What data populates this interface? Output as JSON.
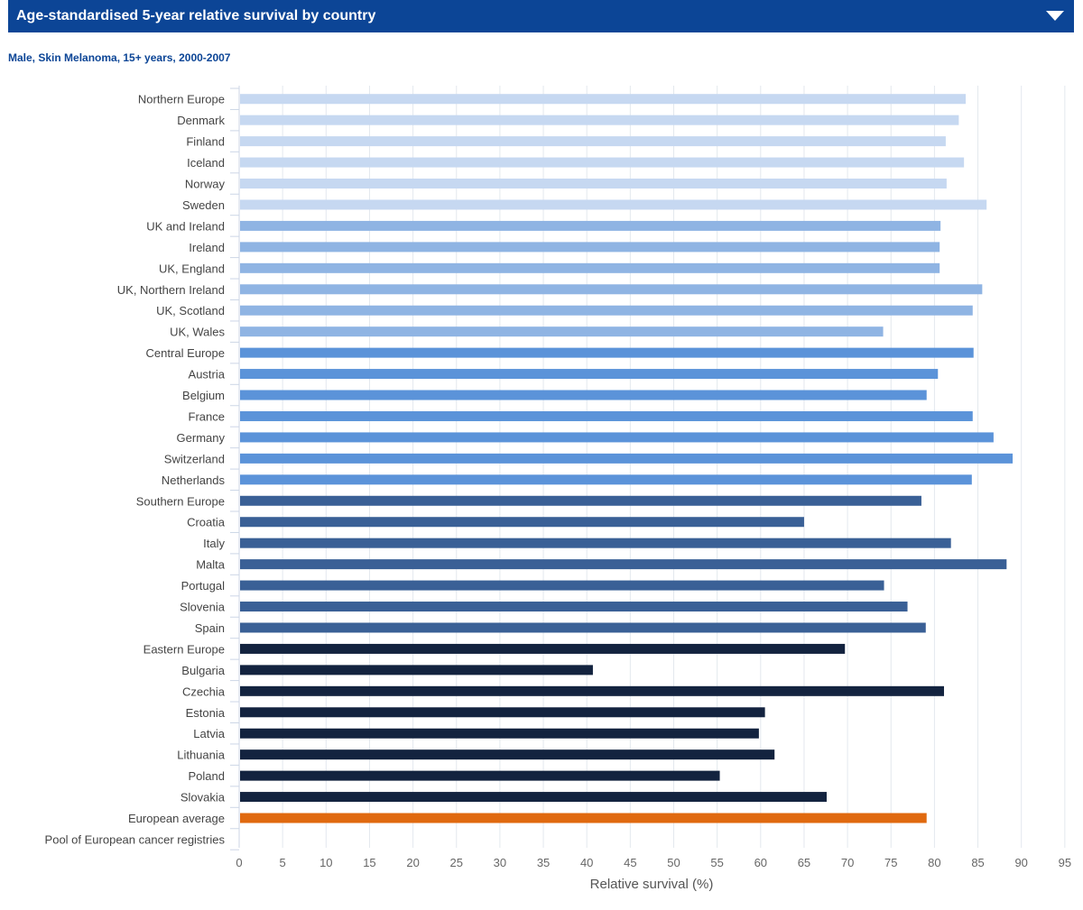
{
  "header": {
    "title": "Age-standardised 5-year relative survival by country"
  },
  "subtitle": "Male, Skin Melanoma, 15+ years, 2000-2007",
  "colors": {
    "northern_europe": "#c6d8f1",
    "uk_and_ireland": "#8fb4e3",
    "central_europe": "#5b93d9",
    "southern_europe": "#3a6096",
    "eastern_europe": "#13233f",
    "european_average": "#e0690f"
  },
  "chart_data": {
    "type": "bar",
    "orientation": "horizontal",
    "xlabel": "Relative survival (%)",
    "xlim": [
      0,
      95
    ],
    "xticks": [
      0,
      5,
      10,
      15,
      20,
      25,
      30,
      35,
      40,
      45,
      50,
      55,
      60,
      65,
      70,
      75,
      80,
      85,
      90,
      95
    ],
    "grid": "vertical",
    "categories": [
      "Northern Europe",
      "Denmark",
      "Finland",
      "Iceland",
      "Norway",
      "Sweden",
      "UK and Ireland",
      "Ireland",
      "UK, England",
      "UK, Northern Ireland",
      "UK, Scotland",
      "UK, Wales",
      "Central Europe",
      "Austria",
      "Belgium",
      "France",
      "Germany",
      "Switzerland",
      "Netherlands",
      "Southern Europe",
      "Croatia",
      "Italy",
      "Malta",
      "Portugal",
      "Slovenia",
      "Spain",
      "Eastern Europe",
      "Bulgaria",
      "Czechia",
      "Estonia",
      "Latvia",
      "Lithuania",
      "Poland",
      "Slovakia",
      "European average",
      "Pool of European cancer registries"
    ],
    "values": [
      83.6,
      82.8,
      81.3,
      83.4,
      81.4,
      86.0,
      80.7,
      80.6,
      80.6,
      85.5,
      84.4,
      74.1,
      84.5,
      80.4,
      79.1,
      84.4,
      86.8,
      89.0,
      84.3,
      78.5,
      65.0,
      81.9,
      88.3,
      74.2,
      76.9,
      79.0,
      69.7,
      40.7,
      81.1,
      60.5,
      59.8,
      61.6,
      55.3,
      67.6,
      79.1,
      null
    ],
    "groups": [
      "northern_europe",
      "northern_europe",
      "northern_europe",
      "northern_europe",
      "northern_europe",
      "northern_europe",
      "uk_and_ireland",
      "uk_and_ireland",
      "uk_and_ireland",
      "uk_and_ireland",
      "uk_and_ireland",
      "uk_and_ireland",
      "central_europe",
      "central_europe",
      "central_europe",
      "central_europe",
      "central_europe",
      "central_europe",
      "central_europe",
      "southern_europe",
      "southern_europe",
      "southern_europe",
      "southern_europe",
      "southern_europe",
      "southern_europe",
      "southern_europe",
      "eastern_europe",
      "eastern_europe",
      "eastern_europe",
      "eastern_europe",
      "eastern_europe",
      "eastern_europe",
      "eastern_europe",
      "eastern_europe",
      "european_average",
      "european_average"
    ]
  }
}
